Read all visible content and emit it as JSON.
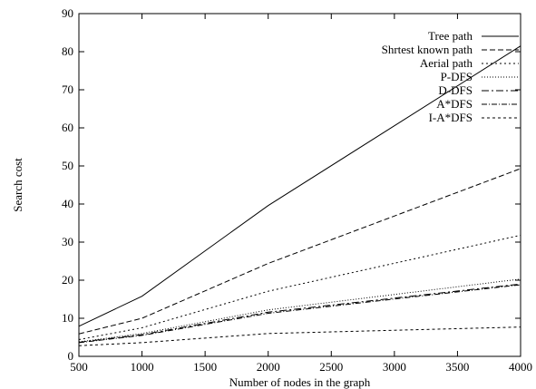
{
  "chart_data": {
    "type": "line",
    "title": "",
    "xlabel": "Number of nodes in the graph",
    "ylabel": "Search cost",
    "xlim": [
      500,
      4000
    ],
    "ylim": [
      0,
      90
    ],
    "x_ticks": [
      500,
      1000,
      1500,
      2000,
      2500,
      3000,
      3500,
      4000
    ],
    "y_ticks": [
      0,
      10,
      20,
      30,
      40,
      50,
      60,
      70,
      80,
      90
    ],
    "grid": false,
    "legend_position": "top-right",
    "x": [
      500,
      1000,
      2000,
      4000
    ],
    "series": [
      {
        "name": "Tree path",
        "values": [
          7.9,
          15.8,
          39.6,
          81.5
        ],
        "dash": "",
        "color": "#000000"
      },
      {
        "name": "Shrtest known path",
        "values": [
          5.9,
          10.0,
          24.4,
          49.3
        ],
        "dash": "6,3",
        "color": "#000000"
      },
      {
        "name": "Aerial path",
        "values": [
          4.4,
          7.5,
          17.1,
          31.8
        ],
        "dash": "2,3",
        "color": "#000000"
      },
      {
        "name": "P-DFS",
        "values": [
          3.8,
          6.0,
          12.2,
          20.3
        ],
        "dash": "1,2",
        "color": "#000000"
      },
      {
        "name": "D-DFS",
        "values": [
          3.7,
          5.7,
          11.6,
          19.0
        ],
        "dash": "8,3,2,3",
        "color": "#000000"
      },
      {
        "name": "A*DFS",
        "values": [
          3.6,
          5.5,
          11.3,
          18.8
        ],
        "dash": "6,2,1,2",
        "color": "#000000"
      },
      {
        "name": "I-A*DFS",
        "values": [
          2.8,
          3.6,
          6.0,
          7.7
        ],
        "dash": "3,3",
        "color": "#000000"
      }
    ]
  }
}
